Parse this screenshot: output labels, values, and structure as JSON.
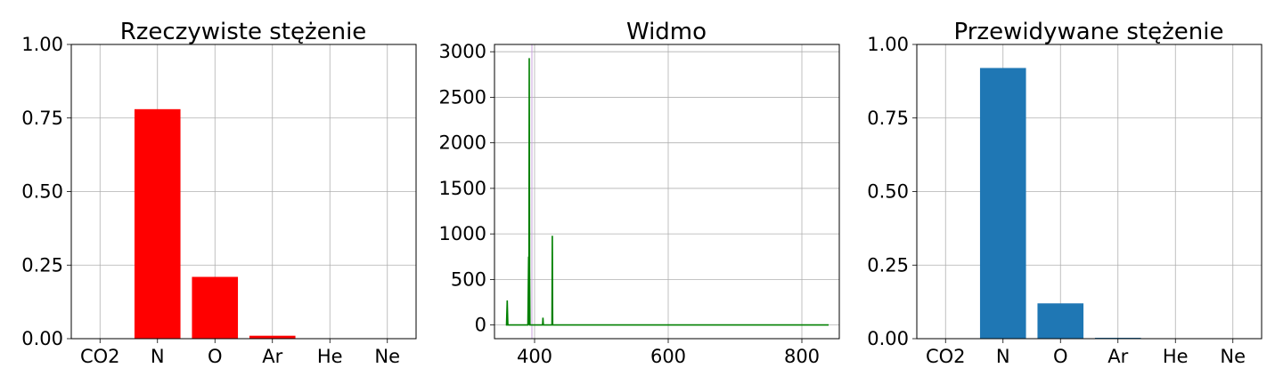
{
  "chart_data": [
    {
      "type": "bar",
      "title": "Rzeczywiste stężenie",
      "categories": [
        "CO2",
        "N",
        "O",
        "Ar",
        "He",
        "Ne"
      ],
      "values": [
        0.0,
        0.78,
        0.21,
        0.01,
        0.0,
        0.0
      ],
      "ylim": [
        0,
        1
      ],
      "yticks": [
        "0.00",
        "0.25",
        "0.50",
        "0.75",
        "1.00"
      ],
      "color": "#ff0000",
      "grid": true
    },
    {
      "type": "line",
      "title": "Widmo",
      "x": [
        357,
        358,
        359,
        360,
        361,
        390,
        391,
        391.5,
        392,
        392.5,
        393,
        394,
        396,
        397,
        398,
        412,
        412.5,
        413,
        413.5,
        426,
        426.5,
        427,
        427.5,
        428,
        840
      ],
      "y": [
        0,
        0,
        270,
        0,
        0,
        0,
        750,
        0,
        2930,
        600,
        0,
        0,
        0,
        0,
        0,
        0,
        80,
        0,
        0,
        0,
        980,
        0,
        0,
        0,
        0
      ],
      "xlim": [
        340,
        856
      ],
      "ylim": [
        -150,
        3080
      ],
      "xticks": [
        "400",
        "600",
        "800"
      ],
      "yticks": [
        "0",
        "500",
        "1000",
        "1500",
        "2000",
        "2500",
        "3000"
      ],
      "marker_x": 396,
      "color": "#008000",
      "marker_color": "#c9a0dc",
      "grid": true
    },
    {
      "type": "bar",
      "title": "Przewidywane stężenie",
      "categories": [
        "CO2",
        "N",
        "O",
        "Ar",
        "He",
        "Ne"
      ],
      "values": [
        0.0,
        0.92,
        0.12,
        0.003,
        0.0,
        0.0
      ],
      "ylim": [
        0,
        1
      ],
      "yticks": [
        "0.00",
        "0.25",
        "0.50",
        "0.75",
        "1.00"
      ],
      "color": "#1f77b4",
      "grid": true
    }
  ]
}
